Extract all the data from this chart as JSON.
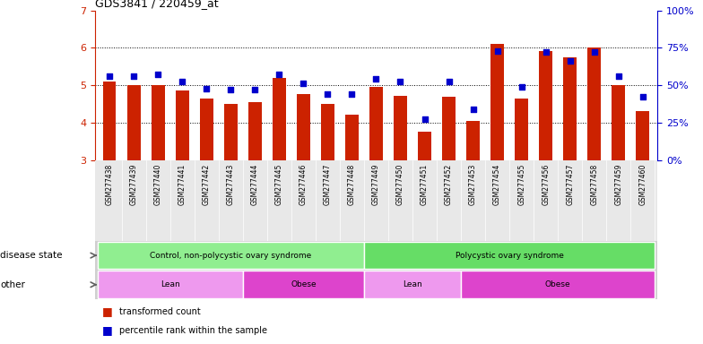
{
  "title": "GDS3841 / 220459_at",
  "samples": [
    "GSM277438",
    "GSM277439",
    "GSM277440",
    "GSM277441",
    "GSM277442",
    "GSM277443",
    "GSM277444",
    "GSM277445",
    "GSM277446",
    "GSM277447",
    "GSM277448",
    "GSM277449",
    "GSM277450",
    "GSM277451",
    "GSM277452",
    "GSM277453",
    "GSM277454",
    "GSM277455",
    "GSM277456",
    "GSM277457",
    "GSM277458",
    "GSM277459",
    "GSM277460"
  ],
  "bar_values": [
    5.1,
    5.0,
    5.0,
    4.85,
    4.65,
    4.5,
    4.55,
    5.2,
    4.75,
    4.5,
    4.2,
    4.95,
    4.72,
    3.75,
    4.7,
    4.05,
    6.1,
    4.65,
    5.9,
    5.75,
    6.0,
    5.0,
    4.3
  ],
  "blue_values": [
    5.25,
    5.25,
    5.28,
    5.1,
    4.9,
    4.88,
    4.88,
    5.28,
    5.05,
    4.75,
    4.75,
    5.18,
    5.1,
    4.1,
    5.1,
    4.35,
    5.9,
    4.95,
    5.88,
    5.65,
    5.88,
    5.25,
    4.68
  ],
  "bar_color": "#cc2200",
  "blue_color": "#0000cc",
  "y_min": 3,
  "y_max": 7,
  "yticks_left": [
    3,
    4,
    5,
    6,
    7
  ],
  "yticks_right": [
    0,
    25,
    50,
    75,
    100
  ],
  "grid_values": [
    4,
    5,
    6
  ],
  "disease_state_groups": [
    {
      "label": "Control, non-polycystic ovary syndrome",
      "start": 0,
      "end": 11,
      "color": "#90ee90"
    },
    {
      "label": "Polycystic ovary syndrome",
      "start": 11,
      "end": 23,
      "color": "#66dd66"
    }
  ],
  "other_groups": [
    {
      "label": "Lean",
      "start": 0,
      "end": 6,
      "color": "#ee99ee"
    },
    {
      "label": "Obese",
      "start": 6,
      "end": 11,
      "color": "#dd44cc"
    },
    {
      "label": "Lean",
      "start": 11,
      "end": 15,
      "color": "#ee99ee"
    },
    {
      "label": "Obese",
      "start": 15,
      "end": 23,
      "color": "#dd44cc"
    }
  ],
  "disease_state_label": "disease state",
  "other_label": "other",
  "legend_bar_label": "transformed count",
  "legend_blue_label": "percentile rank within the sample",
  "bg_color": "#ffffff",
  "xtick_bg": "#e8e8e8"
}
